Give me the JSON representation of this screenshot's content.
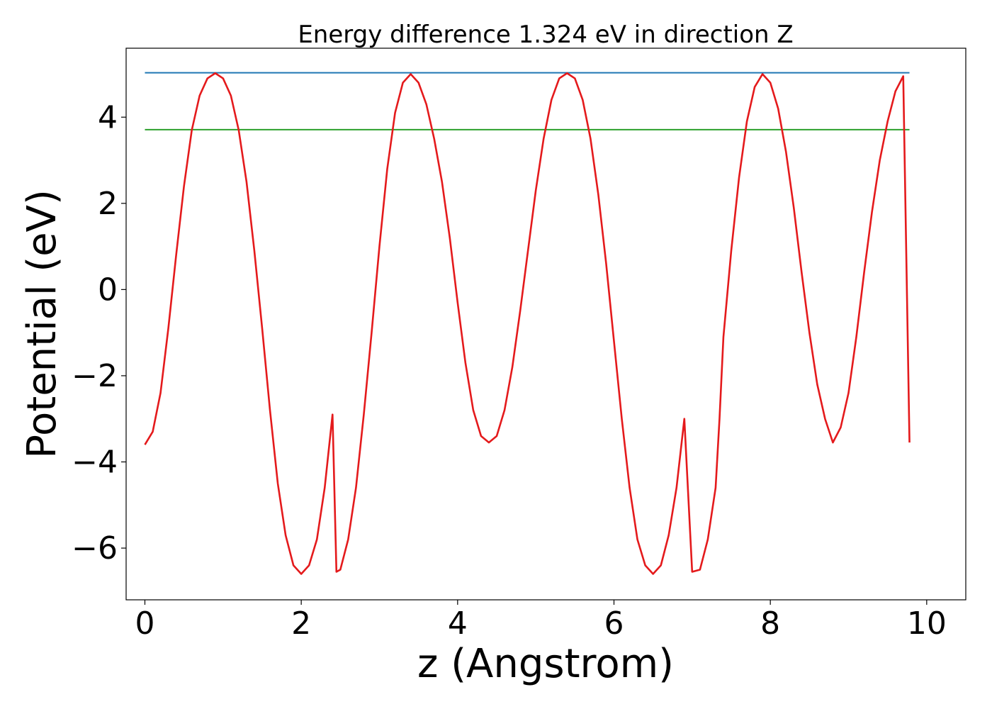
{
  "chart_data": {
    "type": "line",
    "title": "Energy difference 1.324 eV in direction Z",
    "xlabel": "z (Angstrom)",
    "ylabel": "Potential (eV)",
    "xlim": [
      -0.24,
      10.5
    ],
    "ylim": [
      -7.2,
      5.6
    ],
    "xticks": [
      0,
      2,
      4,
      6,
      8,
      10
    ],
    "xtick_labels": [
      "0",
      "2",
      "4",
      "6",
      "8",
      "10"
    ],
    "yticks": [
      -6,
      -4,
      -2,
      0,
      2,
      4
    ],
    "ytick_labels": [
      "−6",
      "−4",
      "−2",
      "0",
      "2",
      "4"
    ],
    "grid": false,
    "series": [
      {
        "color": "#1f77b4",
        "x": [
          0,
          9.78
        ],
        "y": [
          5.03,
          5.03
        ]
      },
      {
        "color": "#2ca02c",
        "x": [
          0,
          9.78
        ],
        "y": [
          3.71,
          3.71
        ]
      },
      {
        "color": "#e41a1c",
        "x": [
          0,
          0.1,
          0.2,
          0.3,
          0.4,
          0.5,
          0.6,
          0.7,
          0.8,
          0.9,
          1.0,
          1.1,
          1.2,
          1.3,
          1.4,
          1.5,
          1.6,
          1.7,
          1.8,
          1.9,
          2.0,
          2.1,
          2.2,
          2.3,
          2.4,
          2.45,
          2.5,
          2.6,
          2.7,
          2.8,
          2.9,
          3.0,
          3.1,
          3.2,
          3.3,
          3.4,
          3.5,
          3.6,
          3.7,
          3.8,
          3.9,
          4.0,
          4.1,
          4.2,
          4.3,
          4.4,
          4.5,
          4.6,
          4.7,
          4.8,
          4.9,
          5.0,
          5.1,
          5.2,
          5.3,
          5.4,
          5.5,
          5.6,
          5.7,
          5.8,
          5.9,
          6.0,
          6.1,
          6.2,
          6.3,
          6.4,
          6.5,
          6.6,
          6.7,
          6.8,
          6.9,
          7.0,
          7.1,
          7.2,
          7.3,
          7.35,
          7.4,
          7.5,
          7.6,
          7.7,
          7.8,
          7.9,
          8.0,
          8.1,
          8.2,
          8.3,
          8.4,
          8.5,
          8.6,
          8.7,
          8.8,
          8.9,
          9.0,
          9.1,
          9.2,
          9.3,
          9.4,
          9.5,
          9.6,
          9.7,
          9.78
        ],
        "y": [
          -3.6,
          -3.3,
          -2.4,
          -0.9,
          0.8,
          2.4,
          3.7,
          4.5,
          4.9,
          5.02,
          4.9,
          4.5,
          3.7,
          2.5,
          0.9,
          -0.9,
          -2.8,
          -4.5,
          -5.7,
          -6.4,
          -6.6,
          -6.4,
          -5.8,
          -4.6,
          -2.9,
          -6.55,
          -6.5,
          -5.8,
          -4.6,
          -2.9,
          -1.0,
          1.0,
          2.8,
          4.1,
          4.8,
          5.0,
          4.8,
          4.3,
          3.5,
          2.5,
          1.2,
          -0.3,
          -1.7,
          -2.8,
          -3.4,
          -3.55,
          -3.4,
          -2.8,
          -1.8,
          -0.5,
          0.9,
          2.3,
          3.5,
          4.4,
          4.9,
          5.02,
          4.9,
          4.4,
          3.5,
          2.2,
          0.6,
          -1.2,
          -3.0,
          -4.6,
          -5.8,
          -6.4,
          -6.6,
          -6.4,
          -5.7,
          -4.6,
          -3.0,
          -6.55,
          -6.5,
          -5.8,
          -4.6,
          -3.0,
          -1.1,
          0.9,
          2.6,
          3.9,
          4.7,
          5.0,
          4.8,
          4.2,
          3.2,
          1.9,
          0.4,
          -1.0,
          -2.2,
          -3.0,
          -3.55,
          -3.2,
          -2.4,
          -1.1,
          0.4,
          1.8,
          3.0,
          3.9,
          4.6,
          4.95,
          -3.55
        ]
      }
    ]
  }
}
